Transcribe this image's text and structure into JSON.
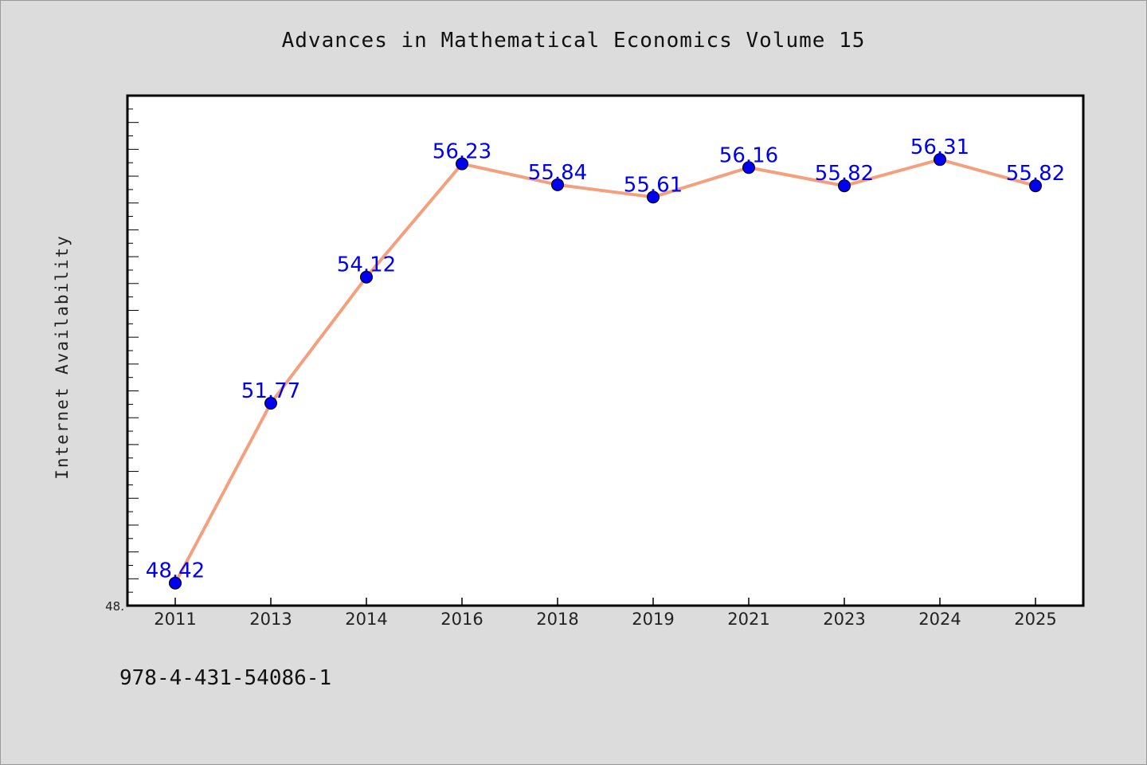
{
  "chart_data": {
    "type": "line",
    "title": "Advances in Mathematical Economics Volume 15",
    "xlabel": "",
    "ylabel": "Internet Availability",
    "categories": [
      "2011",
      "2013",
      "2014",
      "2016",
      "2018",
      "2019",
      "2021",
      "2023",
      "2024",
      "2025"
    ],
    "series": [
      {
        "values": [
          48.42,
          51.77,
          54.12,
          56.23,
          55.84,
          55.61,
          56.16,
          55.82,
          56.31,
          55.82
        ],
        "data_labels": [
          "48.42",
          "51.77",
          "54.12",
          "56.23",
          "55.84",
          "55.61",
          "56.16",
          "55.82",
          "56.31",
          "55.82"
        ]
      }
    ],
    "ylim": [
      48.0,
      57.5
    ],
    "y_tick_label": "48.",
    "grid": false,
    "legend": "none",
    "colors": {
      "line": "#f4a07f",
      "marker": "#0000ee",
      "data_label": "#0000ee",
      "plot_background": "#ffffff",
      "page_background": "#dcdcdc"
    }
  },
  "footer": {
    "isbn": "978-4-431-54086-1"
  }
}
